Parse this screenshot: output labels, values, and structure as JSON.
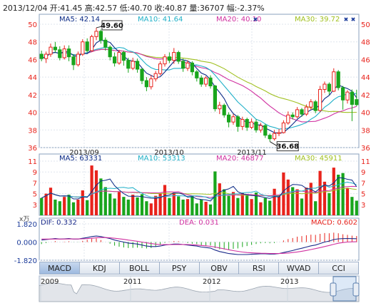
{
  "header": "2013/12/04 开:41.45 高:42.57 低:40.70 收:40.87 量:36707 幅:-2.37%",
  "colors": {
    "up": "#e8231c",
    "down": "#18a51c",
    "ma5": "#0a2a86",
    "ma10": "#20b0c8",
    "ma20": "#d030a0",
    "ma30": "#a0c020"
  },
  "price_panel": {
    "ma_labels": [
      {
        "key": "ma5",
        "text": "MA5: 42.14"
      },
      {
        "key": "ma10",
        "text": "MA10: 41.64"
      },
      {
        "key": "ma20",
        "text": "MA20: 40.10"
      },
      {
        "key": "ma30",
        "text": "MA30: 39.72"
      }
    ],
    "y_ticks": [
      "50",
      "48",
      "46",
      "44",
      "42",
      "40",
      "38",
      "36"
    ],
    "x_ticks": [
      "2013/09",
      "2013/10",
      "2013/11"
    ],
    "high_marker": "49.60",
    "low_marker": "36.68"
  },
  "volume_panel": {
    "unit": "x万",
    "ma_labels": [
      {
        "key": "ma5",
        "text": "MA5: 63331"
      },
      {
        "key": "ma10",
        "text": "MA10: 53313"
      },
      {
        "key": "ma20",
        "text": "MA20: 46877"
      },
      {
        "key": "ma30",
        "text": "MA30: 45911"
      }
    ],
    "y_ticks": [
      "11",
      "9",
      "7",
      "5",
      "3"
    ]
  },
  "macd_panel": {
    "dif": "DIF: 0.332",
    "dea": "DEA: 0.031",
    "macd": "MACD: 0.602",
    "y_ticks": [
      "1.820",
      "0.000",
      "-1.820"
    ]
  },
  "tabs": [
    "MACD",
    "KDJ",
    "BOLL",
    "PSY",
    "OBV",
    "RSI",
    "WVAD",
    "CCI"
  ],
  "active_tab": "MACD",
  "overview": {
    "years": [
      "2009",
      "2011",
      "2012",
      "2013"
    ]
  },
  "chart_data": {
    "type": "candlestick",
    "title": "2013/12/04 开:41.45 高:42.57 低:40.70 收:40.87 量:36707 幅:-2.37%",
    "ylim": [
      36,
      50
    ],
    "x_ticks": [
      "2013/09",
      "2013/10",
      "2013/11"
    ],
    "candles": [
      [
        46.6,
        46.1,
        47.0,
        45.8
      ],
      [
        46.1,
        46.6,
        46.9,
        45.6
      ],
      [
        46.6,
        47.4,
        47.8,
        46.3
      ],
      [
        47.4,
        47.1,
        48.0,
        46.8
      ],
      [
        47.1,
        46.2,
        47.5,
        45.9
      ],
      [
        46.2,
        47.2,
        47.6,
        46.0
      ],
      [
        47.2,
        46.3,
        47.6,
        45.8
      ],
      [
        46.3,
        45.4,
        46.6,
        44.8
      ],
      [
        45.4,
        46.6,
        46.9,
        45.2
      ],
      [
        46.6,
        48.0,
        48.3,
        46.4
      ],
      [
        48.0,
        47.0,
        48.4,
        46.8
      ],
      [
        47.0,
        48.6,
        48.8,
        46.9
      ],
      [
        48.6,
        49.2,
        49.6,
        48.2
      ],
      [
        49.2,
        48.2,
        49.4,
        47.8
      ],
      [
        48.2,
        47.4,
        48.5,
        47.0
      ],
      [
        47.4,
        46.3,
        47.6,
        45.9
      ],
      [
        46.3,
        45.6,
        46.8,
        45.2
      ],
      [
        45.6,
        46.8,
        47.1,
        45.4
      ],
      [
        46.8,
        45.9,
        47.0,
        45.3
      ],
      [
        45.9,
        45.0,
        46.2,
        44.5
      ],
      [
        45.0,
        45.8,
        46.2,
        44.8
      ],
      [
        45.8,
        44.9,
        46.1,
        44.5
      ],
      [
        44.9,
        43.6,
        45.0,
        43.2
      ],
      [
        43.6,
        42.9,
        44.0,
        42.4
      ],
      [
        42.9,
        43.8,
        44.2,
        42.6
      ],
      [
        43.8,
        44.4,
        44.7,
        43.5
      ],
      [
        44.4,
        45.5,
        45.8,
        44.2
      ],
      [
        45.5,
        46.3,
        46.6,
        45.2
      ],
      [
        46.3,
        45.9,
        46.8,
        45.6
      ],
      [
        45.9,
        46.8,
        47.3,
        45.5
      ],
      [
        46.8,
        45.8,
        47.0,
        45.5
      ],
      [
        45.8,
        45.0,
        46.1,
        44.6
      ],
      [
        45.0,
        45.6,
        45.9,
        44.7
      ],
      [
        45.6,
        44.6,
        45.8,
        44.2
      ],
      [
        44.6,
        43.9,
        44.8,
        43.5
      ],
      [
        43.9,
        43.2,
        44.2,
        42.9
      ],
      [
        43.2,
        43.9,
        44.1,
        42.9
      ],
      [
        43.9,
        43.0,
        44.2,
        42.7
      ],
      [
        43.0,
        40.4,
        43.1,
        40.1
      ],
      [
        40.4,
        40.8,
        41.2,
        39.8
      ],
      [
        40.8,
        39.7,
        41.0,
        39.4
      ],
      [
        39.7,
        38.9,
        40.0,
        38.3
      ],
      [
        38.9,
        39.5,
        39.8,
        38.6
      ],
      [
        39.5,
        38.4,
        39.7,
        37.8
      ],
      [
        38.4,
        39.2,
        39.5,
        38.0
      ],
      [
        39.2,
        38.3,
        39.4,
        37.9
      ],
      [
        38.3,
        38.9,
        39.3,
        38.1
      ],
      [
        38.9,
        38.0,
        39.2,
        37.7
      ],
      [
        38.0,
        38.5,
        38.8,
        37.7
      ],
      [
        38.5,
        37.4,
        38.7,
        37.1
      ],
      [
        37.4,
        37.0,
        37.6,
        36.7
      ],
      [
        37.0,
        37.6,
        38.0,
        36.8
      ],
      [
        37.6,
        37.7,
        38.1,
        37.3
      ],
      [
        37.7,
        38.8,
        39.1,
        37.6
      ],
      [
        38.8,
        39.7,
        40.1,
        38.6
      ],
      [
        39.7,
        39.5,
        40.0,
        39.2
      ],
      [
        39.5,
        40.3,
        40.6,
        39.3
      ],
      [
        40.3,
        39.8,
        40.5,
        39.5
      ],
      [
        39.8,
        40.6,
        40.9,
        39.6
      ],
      [
        40.6,
        41.2,
        41.5,
        40.3
      ],
      [
        41.2,
        40.2,
        41.4,
        39.9
      ],
      [
        40.2,
        42.6,
        43.0,
        40.0
      ],
      [
        42.6,
        43.2,
        43.5,
        42.2
      ],
      [
        43.2,
        42.4,
        43.4,
        42.0
      ],
      [
        42.4,
        44.6,
        45.0,
        42.3
      ],
      [
        44.6,
        42.8,
        44.8,
        42.5
      ],
      [
        42.8,
        41.4,
        43.0,
        40.3
      ],
      [
        41.4,
        42.3,
        42.5,
        41.0
      ],
      [
        42.3,
        40.9,
        42.6,
        39.0
      ],
      [
        41.45,
        40.87,
        42.57,
        40.7
      ]
    ],
    "volume_ylim": [
      1,
      11
    ],
    "volume": [
      4.2,
      5.0,
      6.1,
      3.9,
      3.6,
      4.4,
      4.8,
      3.4,
      3.9,
      5.6,
      3.8,
      10.2,
      9.3,
      7.8,
      6.2,
      5.0,
      4.1,
      5.3,
      4.4,
      3.9,
      4.8,
      4.3,
      4.9,
      3.6,
      3.2,
      4.6,
      5.1,
      6.6,
      4.2,
      5.2,
      4.5,
      3.9,
      4.0,
      4.6,
      3.2,
      3.9,
      3.5,
      3.0,
      9.1,
      6.9,
      5.8,
      4.6,
      5.3,
      4.2,
      5.1,
      4.6,
      4.0,
      5.2,
      3.4,
      4.2,
      3.7,
      5.9,
      4.8,
      8.9,
      7.6,
      6.2,
      5.8,
      4.1,
      6.1,
      7.0,
      3.6,
      9.2,
      7.2,
      5.1,
      9.8,
      8.5,
      8.8,
      6.0,
      4.4,
      3.7
    ],
    "macd_ylim": [
      -1.82,
      1.82
    ],
    "dif": [
      0.2,
      0.25,
      0.3,
      0.35,
      0.3,
      0.32,
      0.35,
      0.3,
      0.3,
      0.38,
      0.45,
      0.55,
      0.6,
      0.55,
      0.45,
      0.35,
      0.2,
      0.1,
      0.0,
      -0.1,
      -0.15,
      -0.2,
      -0.3,
      -0.4,
      -0.45,
      -0.45,
      -0.4,
      -0.3,
      -0.25,
      -0.2,
      -0.2,
      -0.25,
      -0.3,
      -0.35,
      -0.4,
      -0.5,
      -0.55,
      -0.6,
      -0.8,
      -0.95,
      -1.05,
      -1.15,
      -1.2,
      -1.25,
      -1.25,
      -1.25,
      -1.22,
      -1.2,
      -1.18,
      -1.18,
      -1.2,
      -1.2,
      -1.15,
      -1.05,
      -0.95,
      -0.85,
      -0.72,
      -0.62,
      -0.5,
      -0.38,
      -0.3,
      -0.15,
      0.0,
      0.1,
      0.25,
      0.32,
      0.34,
      0.36,
      0.34,
      0.332
    ],
    "dea": [
      0.3,
      0.3,
      0.3,
      0.3,
      0.3,
      0.3,
      0.31,
      0.31,
      0.31,
      0.32,
      0.34,
      0.38,
      0.42,
      0.45,
      0.45,
      0.43,
      0.38,
      0.33,
      0.27,
      0.2,
      0.14,
      0.08,
      0.0,
      -0.08,
      -0.15,
      -0.21,
      -0.25,
      -0.26,
      -0.26,
      -0.25,
      -0.24,
      -0.24,
      -0.25,
      -0.27,
      -0.3,
      -0.34,
      -0.38,
      -0.43,
      -0.5,
      -0.59,
      -0.68,
      -0.77,
      -0.86,
      -0.93,
      -1.0,
      -1.05,
      -1.08,
      -1.1,
      -1.12,
      -1.13,
      -1.14,
      -1.15,
      -1.15,
      -1.13,
      -1.1,
      -1.05,
      -0.99,
      -0.92,
      -0.84,
      -0.75,
      -0.66,
      -0.56,
      -0.45,
      -0.34,
      -0.22,
      -0.12,
      -0.05,
      0.0,
      0.02,
      0.031
    ]
  }
}
